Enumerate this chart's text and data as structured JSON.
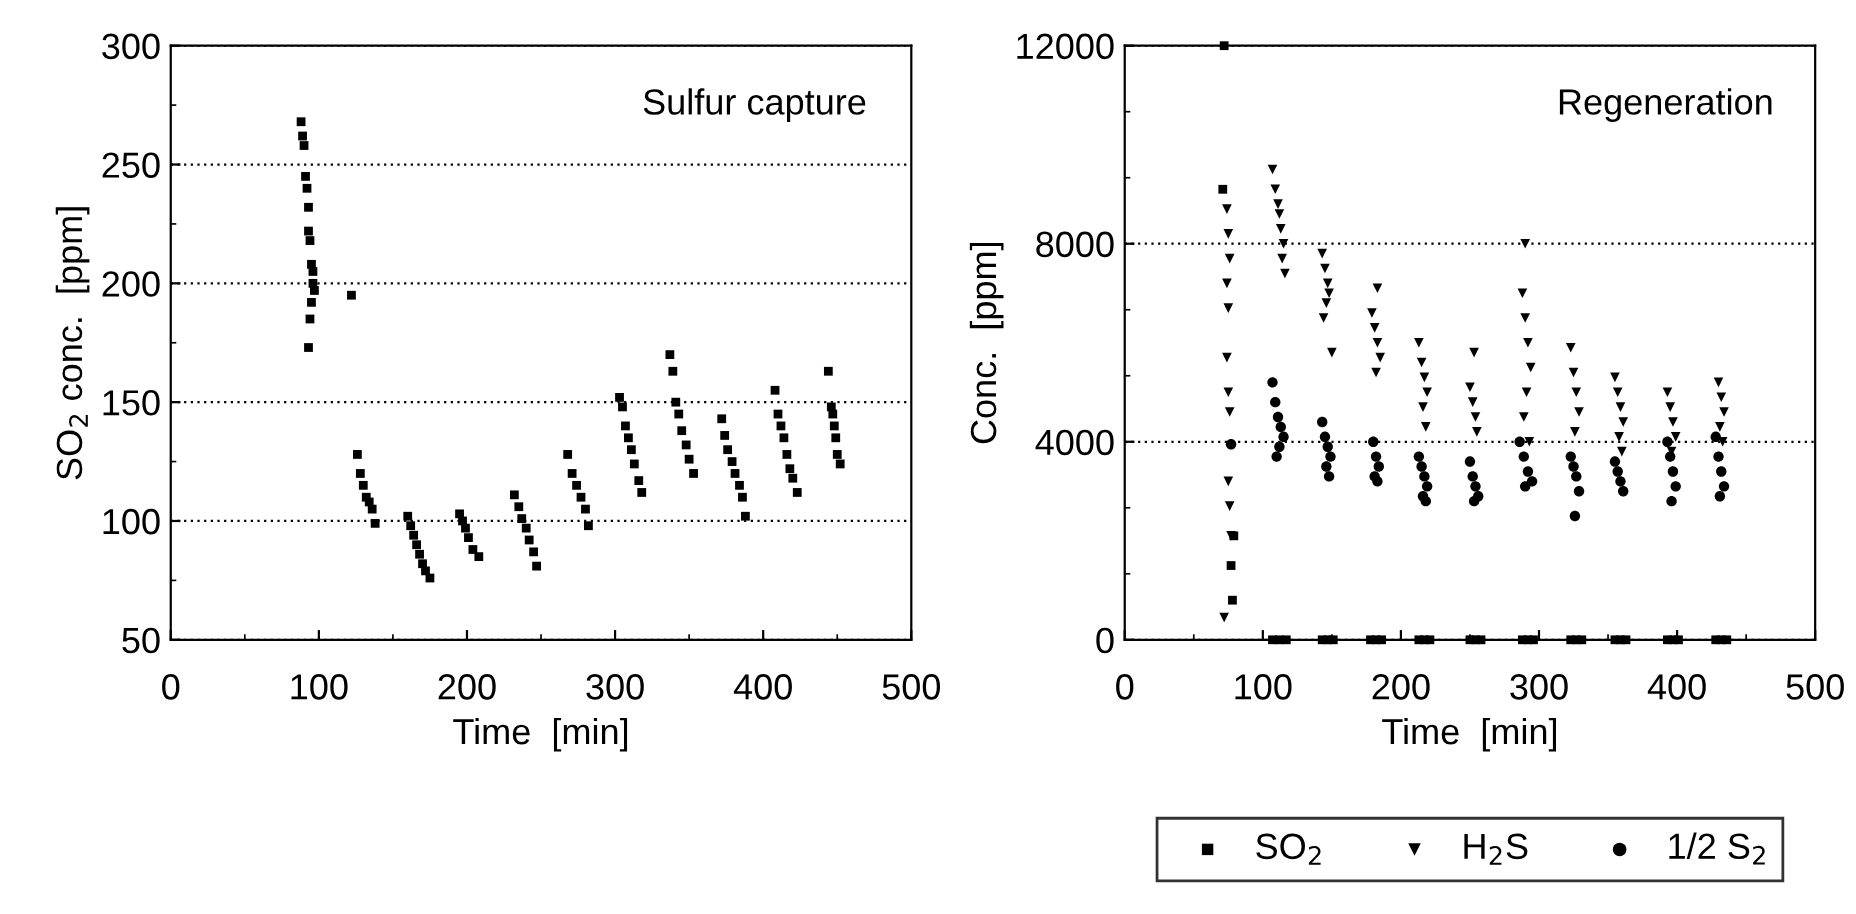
{
  "chart_data": [
    {
      "type": "scatter",
      "xlabel": "Time  [min]",
      "ylabel": "SO$_{2}$ conc.  [ppm]",
      "annotations": [
        "Sulfur capture"
      ],
      "xlim": [
        0,
        500
      ],
      "xticks": [
        0,
        100,
        200,
        300,
        400,
        500
      ],
      "ylim": [
        50,
        300
      ],
      "yticks": [
        50,
        100,
        150,
        200,
        250,
        300
      ],
      "grid": "y",
      "legend": false,
      "series": [
        {
          "color": "#000000",
          "marker": "square",
          "x": [
            88,
            89,
            90,
            91,
            92,
            93,
            93,
            94,
            95,
            96,
            96,
            97,
            95,
            94,
            93,
            122,
            126,
            128,
            130,
            132,
            134,
            136,
            138,
            160,
            162,
            164,
            166,
            168,
            170,
            172,
            175,
            195,
            197,
            199,
            201,
            204,
            208,
            232,
            235,
            237,
            240,
            242,
            245,
            247,
            268,
            271,
            274,
            277,
            280,
            282,
            303,
            305,
            307,
            309,
            311,
            313,
            316,
            318,
            337,
            339,
            341,
            343,
            345,
            348,
            350,
            353,
            372,
            374,
            376,
            379,
            381,
            384,
            386,
            388,
            408,
            410,
            412,
            414,
            416,
            418,
            420,
            423,
            444,
            446,
            447,
            448,
            449,
            450,
            452
          ],
          "values": [
            268,
            262,
            258,
            245,
            240,
            232,
            222,
            218,
            208,
            205,
            200,
            197,
            192,
            185,
            173,
            195,
            128,
            120,
            115,
            110,
            108,
            105,
            99,
            102,
            98,
            94,
            90,
            86,
            82,
            79,
            76,
            103,
            100,
            97,
            93,
            88,
            85,
            111,
            106,
            101,
            97,
            92,
            87,
            81,
            128,
            120,
            115,
            110,
            105,
            98,
            152,
            148,
            140,
            135,
            130,
            124,
            117,
            112,
            170,
            163,
            150,
            145,
            138,
            132,
            126,
            120,
            143,
            136,
            130,
            125,
            120,
            115,
            110,
            102,
            155,
            145,
            140,
            135,
            128,
            122,
            118,
            112,
            163,
            148,
            145,
            140,
            135,
            128,
            124
          ]
        }
      ]
    },
    {
      "type": "scatter",
      "xlabel": "Time  [min]",
      "ylabel": "Conc.  [ppm]",
      "annotations": [
        "Regeneration"
      ],
      "xlim": [
        0,
        500
      ],
      "xticks": [
        0,
        100,
        200,
        300,
        400,
        500
      ],
      "ylim": [
        0,
        12000
      ],
      "yticks": [
        0,
        4000,
        8000,
        12000
      ],
      "grid": "y",
      "legend": "bottom",
      "series": [
        {
          "name": "SO$_{2}$",
          "color": "#000000",
          "marker": "square",
          "x": [
            72,
            71,
            79,
            77,
            78,
            107,
            112,
            117,
            143,
            147,
            151,
            178,
            182,
            186,
            213,
            217,
            221,
            250,
            254,
            258,
            288,
            292,
            296,
            323,
            327,
            331,
            355,
            359,
            363,
            393,
            397,
            401,
            428,
            432,
            436
          ],
          "values": [
            12000,
            9100,
            2100,
            1500,
            800,
            0,
            0,
            0,
            0,
            0,
            0,
            0,
            0,
            0,
            0,
            0,
            0,
            0,
            0,
            0,
            0,
            0,
            0,
            0,
            0,
            0,
            0,
            0,
            0,
            0,
            0,
            0,
            0,
            0,
            0
          ]
        },
        {
          "name": "H$_{2}$S",
          "color": "#000000",
          "marker": "triangle",
          "x": [
            74,
            75,
            76,
            74,
            75,
            74,
            75,
            76,
            75,
            76,
            77,
            72,
            107,
            109,
            111,
            112,
            113,
            115,
            114,
            116,
            143,
            145,
            147,
            148,
            146,
            144,
            150,
            183,
            179,
            181,
            183,
            185,
            182,
            213,
            215,
            217,
            219,
            216,
            218,
            253,
            250,
            252,
            254,
            255,
            290,
            288,
            290,
            292,
            294,
            291,
            289,
            293,
            323,
            325,
            327,
            329,
            326,
            355,
            357,
            359,
            361,
            358,
            360,
            393,
            395,
            397,
            399,
            396,
            430,
            432,
            434,
            431,
            433
          ],
          "values": [
            8700,
            8200,
            7700,
            7200,
            6700,
            5700,
            5000,
            4600,
            3200,
            2700,
            2100,
            450,
            9500,
            9100,
            8800,
            8600,
            8300,
            8000,
            7700,
            7400,
            7800,
            7500,
            7200,
            7000,
            6800,
            6500,
            5800,
            7100,
            6600,
            6300,
            6000,
            5700,
            5400,
            6000,
            5600,
            5300,
            5000,
            4700,
            4300,
            5800,
            5100,
            4800,
            4500,
            4200,
            8000,
            7000,
            6500,
            6000,
            5500,
            5000,
            4500,
            4000,
            5900,
            5400,
            5000,
            4600,
            4200,
            5300,
            5000,
            4700,
            4400,
            4100,
            3800,
            5000,
            4700,
            4400,
            4100,
            3800,
            5200,
            4900,
            4600,
            4300,
            4000
          ]
        },
        {
          "name": "1/2 S$_{2}$",
          "color": "#000000",
          "marker": "circle",
          "x": [
            77,
            107,
            109,
            111,
            113,
            115,
            112,
            110,
            143,
            145,
            147,
            149,
            146,
            148,
            180,
            182,
            184,
            181,
            183,
            213,
            215,
            217,
            219,
            216,
            218,
            250,
            252,
            254,
            256,
            253,
            286,
            289,
            292,
            295,
            290,
            323,
            325,
            327,
            329,
            326,
            355,
            357,
            359,
            361,
            393,
            395,
            397,
            399,
            396,
            428,
            430,
            432,
            434,
            431
          ],
          "values": [
            3950,
            5200,
            4800,
            4500,
            4300,
            4100,
            3900,
            3700,
            4400,
            4100,
            3900,
            3700,
            3500,
            3300,
            4000,
            3700,
            3500,
            3300,
            3200,
            3700,
            3500,
            3300,
            3100,
            2900,
            2800,
            3600,
            3300,
            3100,
            2900,
            2800,
            4000,
            3700,
            3400,
            3200,
            3100,
            3700,
            3500,
            3300,
            3000,
            2500,
            3600,
            3400,
            3200,
            3000,
            4000,
            3700,
            3400,
            3100,
            2800,
            4100,
            3700,
            3400,
            3100,
            2900
          ]
        }
      ]
    }
  ]
}
